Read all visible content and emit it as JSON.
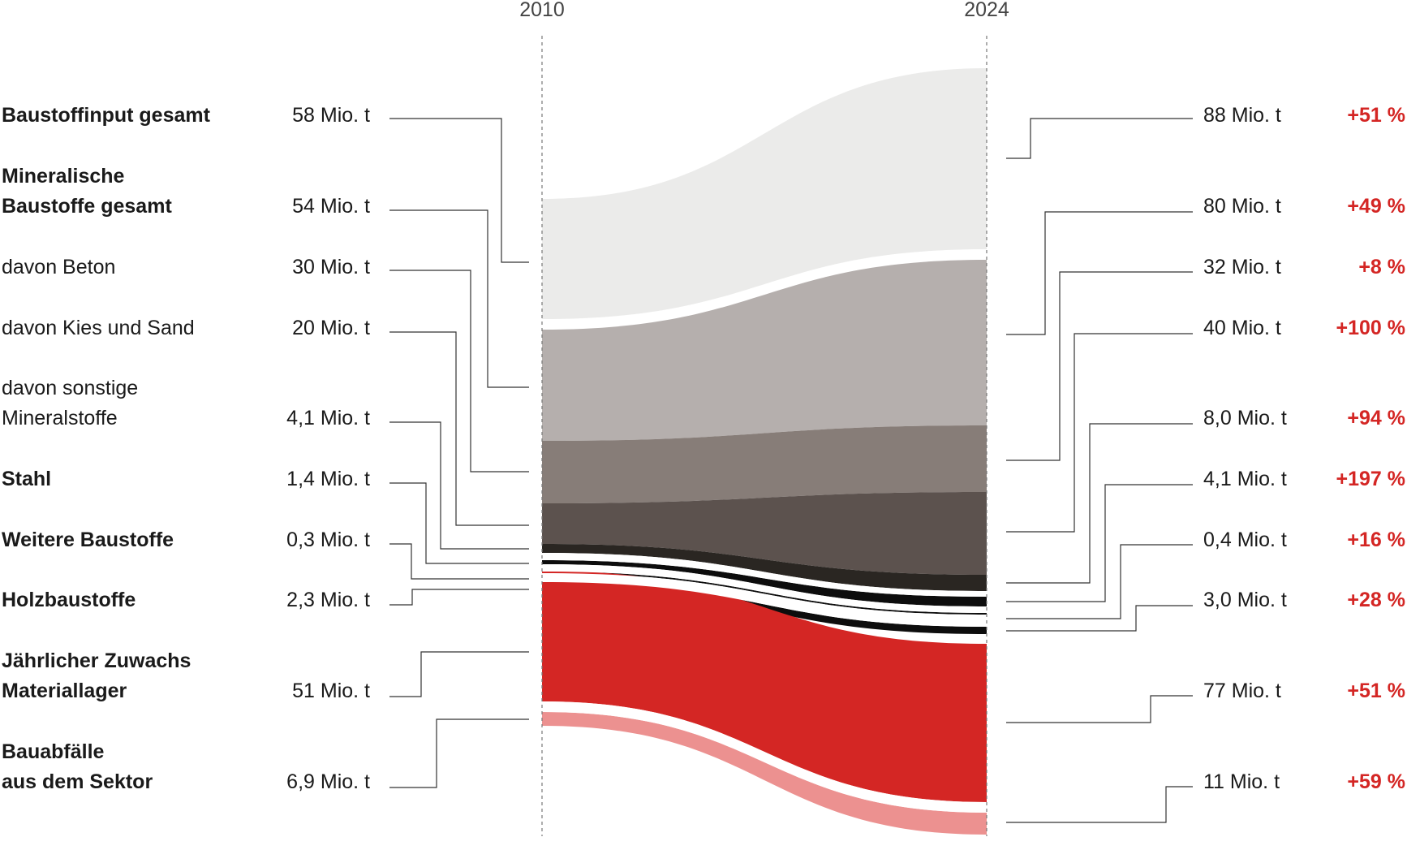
{
  "chart_data": {
    "type": "sankey",
    "title": "",
    "years": [
      "2010",
      "2024"
    ],
    "unit": "Mio. t",
    "colors": {
      "light_gray": "#ebebea",
      "mid_gray": "#b5afad",
      "dark_gray": "#877d78",
      "darker_gray": "#5c524e",
      "near_black": "#2a2622",
      "black": "#0d0d0d",
      "red": "#d42624",
      "light_red": "#ec9190",
      "pct_red": "#d42624"
    },
    "rows": [
      {
        "id": "baustoffinput",
        "label_lines": [
          "Baustoffinput gesamt"
        ],
        "bold": true,
        "value_2010_label": "58 Mio. t",
        "value_2024_label": "88 Mio. t",
        "change": "+51 %",
        "value_2010": 58,
        "value_2024": 88
      },
      {
        "id": "mineralisch",
        "label_lines": [
          "Mineralische",
          "Baustoffe gesamt"
        ],
        "bold": true,
        "value_2010_label": "54 Mio. t",
        "value_2024_label": "80 Mio. t",
        "change": "+49 %",
        "value_2010": 54,
        "value_2024": 80
      },
      {
        "id": "beton",
        "label_lines": [
          "davon Beton"
        ],
        "bold": false,
        "value_2010_label": "30 Mio. t",
        "value_2024_label": "32 Mio. t",
        "change": "+8 %",
        "value_2010": 30,
        "value_2024": 32
      },
      {
        "id": "kies",
        "label_lines": [
          "davon Kies und Sand"
        ],
        "bold": false,
        "value_2010_label": "20 Mio. t",
        "value_2024_label": "40 Mio. t",
        "change": "+100 %",
        "value_2010": 20,
        "value_2024": 40
      },
      {
        "id": "sonstige",
        "label_lines": [
          "davon sonstige",
          "Mineralstoffe"
        ],
        "bold": false,
        "value_2010_label": "4,1 Mio. t",
        "value_2024_label": "8,0 Mio. t",
        "change": "+94 %",
        "value_2010": 4.1,
        "value_2024": 8.0
      },
      {
        "id": "stahl",
        "label_lines": [
          "Stahl"
        ],
        "bold": true,
        "value_2010_label": "1,4 Mio. t",
        "value_2024_label": "4,1 Mio. t",
        "change": "+197 %",
        "value_2010": 1.4,
        "value_2024": 4.1
      },
      {
        "id": "weitere",
        "label_lines": [
          "Weitere Baustoffe"
        ],
        "bold": true,
        "value_2010_label": "0,3 Mio. t",
        "value_2024_label": "0,4 Mio. t",
        "change": "+16 %",
        "value_2010": 0.3,
        "value_2024": 0.4
      },
      {
        "id": "holz",
        "label_lines": [
          "Holzbaustoffe"
        ],
        "bold": true,
        "value_2010_label": "2,3 Mio. t",
        "value_2024_label": "3,0 Mio. t",
        "change": "+28 %",
        "value_2010": 2.3,
        "value_2024": 3.0
      },
      {
        "id": "zuwachs",
        "label_lines": [
          "Jährlicher Zuwachs",
          "Materiallager"
        ],
        "bold": true,
        "value_2010_label": "51 Mio. t",
        "value_2024_label": "77 Mio. t",
        "change": "+51 %",
        "value_2010": 51,
        "value_2024": 77
      },
      {
        "id": "abfaelle",
        "label_lines": [
          "Bauabfälle",
          "aus dem Sektor"
        ],
        "bold": true,
        "value_2010_label": "6,9 Mio. t",
        "value_2024_label": "11 Mio. t",
        "change": "+59 %",
        "value_2010": 6.9,
        "value_2024": 11
      }
    ]
  }
}
